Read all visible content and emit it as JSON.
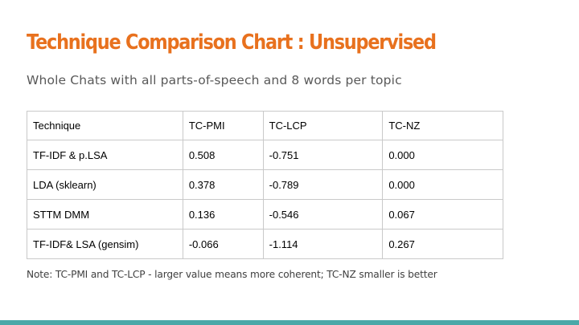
{
  "slide": {
    "title": "Technique Comparison Chart : Unsupervised",
    "subtitle": "Whole Chats with all parts-of-speech and 8 words per topic",
    "note": "Note:  TC-PMI and TC-LCP - larger value means more coherent; TC-NZ smaller is better"
  },
  "table": {
    "headers": [
      "Technique",
      "TC-PMI",
      "TC-LCP",
      "TC-NZ"
    ],
    "rows": [
      [
        "TF-IDF & p.LSA",
        "0.508",
        "-0.751",
        "0.000"
      ],
      [
        "LDA (sklearn)",
        "0.378",
        "-0.789",
        "0.000"
      ],
      [
        "STTM DMM",
        "0.136",
        "-0.546",
        "0.067"
      ],
      [
        "TF-IDF& LSA (gensim)",
        "-0.066",
        "-1.114",
        "0.267"
      ]
    ]
  },
  "colors": {
    "title": "#e8711e",
    "accent_bar": "#4aa8a8"
  }
}
